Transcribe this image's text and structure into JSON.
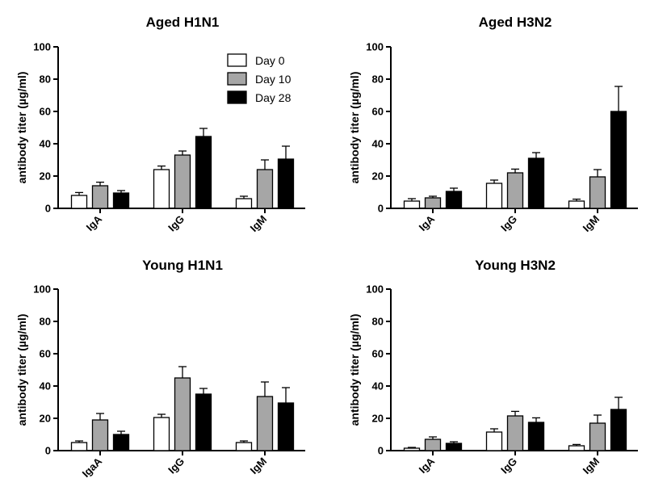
{
  "chart_data": [
    {
      "type": "bar",
      "title": "Aged H1N1",
      "ylabel": "antibody titer (µg/ml)",
      "ylim": [
        0,
        100
      ],
      "yticks": [
        "0",
        "20",
        "40",
        "60",
        "80",
        "100"
      ],
      "categories": [
        "IgA",
        "IgG",
        "IgM"
      ],
      "series": [
        {
          "name": "Day 0",
          "color": "#ffffff",
          "values": [
            8,
            24,
            6
          ],
          "errors": [
            1.8,
            2.2,
            1.5
          ]
        },
        {
          "name": "Day 10",
          "color": "#a6a6a6",
          "values": [
            14,
            33,
            24
          ],
          "errors": [
            2.2,
            2.5,
            6
          ]
        },
        {
          "name": "Day 28",
          "color": "#000000",
          "values": [
            9.5,
            44.5,
            30.5
          ],
          "errors": [
            1.5,
            5,
            8
          ]
        }
      ],
      "legend": "top-right"
    },
    {
      "type": "bar",
      "title": "Aged H3N2",
      "ylabel": "antibody titer (µg/ml)",
      "ylim": [
        0,
        100
      ],
      "yticks": [
        "0",
        "20",
        "40",
        "60",
        "80",
        "100"
      ],
      "categories": [
        "IgA",
        "IgG",
        "IgM"
      ],
      "series": [
        {
          "name": "Day 0",
          "color": "#ffffff",
          "values": [
            4.5,
            15.5,
            4.5
          ],
          "errors": [
            1.5,
            2,
            1.2
          ]
        },
        {
          "name": "Day 10",
          "color": "#a6a6a6",
          "values": [
            6.5,
            22,
            19.5
          ],
          "errors": [
            1,
            2.3,
            4.5
          ]
        },
        {
          "name": "Day 28",
          "color": "#000000",
          "values": [
            10.5,
            31,
            60
          ],
          "errors": [
            2,
            3.5,
            15.5
          ]
        }
      ]
    },
    {
      "type": "bar",
      "title": "Young H1N1",
      "ylabel": "antibody titer (µg/ml)",
      "ylim": [
        0,
        100
      ],
      "yticks": [
        "0",
        "20",
        "40",
        "60",
        "80",
        "100"
      ],
      "categories": [
        "IgaA",
        "IgG",
        "IgM"
      ],
      "series": [
        {
          "name": "Day 0",
          "color": "#ffffff",
          "values": [
            5,
            20.5,
            5
          ],
          "errors": [
            1,
            2,
            1
          ]
        },
        {
          "name": "Day 10",
          "color": "#a6a6a6",
          "values": [
            19,
            45,
            33.5
          ],
          "errors": [
            4,
            7,
            9
          ]
        },
        {
          "name": "Day 28",
          "color": "#000000",
          "values": [
            10,
            35,
            29.5
          ],
          "errors": [
            2,
            3.5,
            9.5
          ]
        }
      ]
    },
    {
      "type": "bar",
      "title": "Young H3N2",
      "ylabel": "antibody titer (µg/ml)",
      "ylim": [
        0,
        100
      ],
      "yticks": [
        "0",
        "20",
        "40",
        "60",
        "80",
        "100"
      ],
      "categories": [
        "IgA",
        "IgG",
        "IgM"
      ],
      "series": [
        {
          "name": "Day 0",
          "color": "#ffffff",
          "values": [
            1.5,
            11.5,
            3
          ],
          "errors": [
            0.5,
            2,
            0.8
          ]
        },
        {
          "name": "Day 10",
          "color": "#a6a6a6",
          "values": [
            7,
            21.5,
            17
          ],
          "errors": [
            1.5,
            2.8,
            5
          ]
        },
        {
          "name": "Day 28",
          "color": "#000000",
          "values": [
            4.5,
            17.5,
            25.5
          ],
          "errors": [
            1,
            2.8,
            7.5
          ]
        }
      ]
    }
  ]
}
